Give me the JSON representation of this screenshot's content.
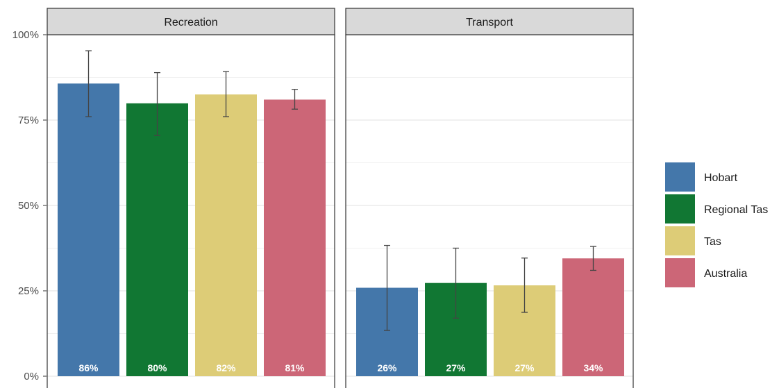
{
  "chart_data": {
    "type": "bar",
    "facets": [
      "Recreation",
      "Transport"
    ],
    "series_names": [
      "Hobart",
      "Regional Tas",
      "Tas",
      "Australia"
    ],
    "colors": [
      "#4477aa",
      "#117733",
      "#ddcc77",
      "#cc6677"
    ],
    "ylim": [
      0,
      100
    ],
    "y_ticks": [
      0,
      25,
      50,
      75,
      100
    ],
    "y_tick_labels": [
      "0%",
      "25%",
      "50%",
      "75%",
      "100%"
    ],
    "grid": true,
    "legend_position": "right",
    "panels": [
      {
        "facet": "Recreation",
        "values": [
          85.7,
          79.9,
          82.5,
          81.0
        ],
        "error_low": [
          76.0,
          70.5,
          76.0,
          78.2
        ],
        "error_high": [
          95.3,
          88.9,
          89.2,
          84.0
        ],
        "labels": [
          "86%",
          "80%",
          "82%",
          "81%"
        ]
      },
      {
        "facet": "Transport",
        "values": [
          25.9,
          27.3,
          26.6,
          34.5
        ],
        "error_low": [
          13.4,
          17.0,
          18.7,
          31.0
        ],
        "error_high": [
          38.3,
          37.5,
          34.6,
          38.0
        ],
        "labels": [
          "26%",
          "27%",
          "27%",
          "34%"
        ]
      }
    ]
  }
}
